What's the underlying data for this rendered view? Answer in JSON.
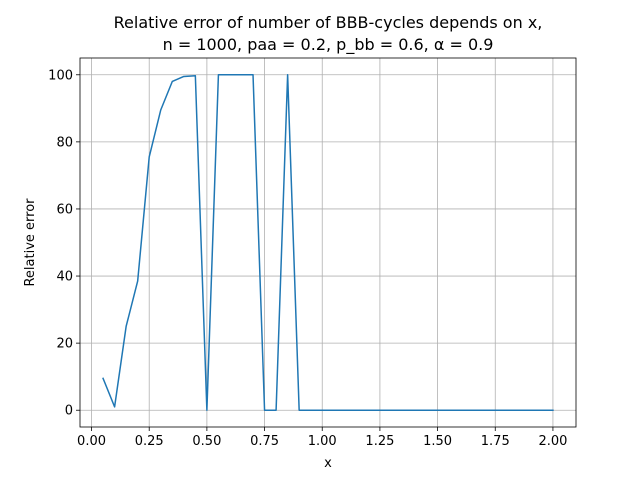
{
  "chart_data": {
    "type": "line",
    "title_line1": "Relative error of number of BBB-cycles depends on x,",
    "title_line2": "n = 1000, paa = 0.2, p_bb = 0.6, α = 0.9",
    "xlabel": "x",
    "ylabel": "Relative error",
    "xlim": [
      -0.05,
      2.1
    ],
    "ylim": [
      -5,
      105
    ],
    "xticks": [
      0.0,
      0.25,
      0.5,
      0.75,
      1.0,
      1.25,
      1.5,
      1.75,
      2.0
    ],
    "xtick_labels": [
      "0.00",
      "0.25",
      "0.50",
      "0.75",
      "1.00",
      "1.25",
      "1.50",
      "1.75",
      "2.00"
    ],
    "yticks": [
      0,
      20,
      40,
      60,
      80,
      100
    ],
    "ytick_labels": [
      "0",
      "20",
      "40",
      "60",
      "80",
      "100"
    ],
    "grid": true,
    "series": [
      {
        "color": "#1f77b4",
        "x": [
          0.05,
          0.1,
          0.15,
          0.2,
          0.25,
          0.3,
          0.35,
          0.4,
          0.45,
          0.5,
          0.55,
          0.6,
          0.65,
          0.7,
          0.75,
          0.8,
          0.85,
          0.9,
          0.95,
          1.0,
          1.05,
          1.1,
          1.15,
          1.2,
          1.25,
          1.3,
          1.35,
          1.4,
          1.45,
          1.5,
          1.55,
          1.6,
          1.65,
          1.7,
          1.75,
          1.8,
          1.85,
          1.9,
          1.95,
          2.0
        ],
        "y": [
          9.5,
          1.0,
          25.0,
          38.5,
          75.5,
          89.5,
          98.0,
          99.5,
          99.7,
          0.0,
          100.0,
          100.0,
          100.0,
          100.0,
          0.0,
          0.0,
          100.0,
          0.0,
          0.0,
          0.0,
          0.0,
          0.0,
          0.0,
          0.0,
          0.0,
          0.0,
          0.0,
          0.0,
          0.0,
          0.0,
          0.0,
          0.0,
          0.0,
          0.0,
          0.0,
          0.0,
          0.0,
          0.0,
          0.0,
          0.0
        ]
      }
    ]
  }
}
